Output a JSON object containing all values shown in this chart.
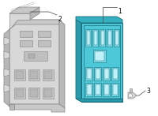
{
  "bg_color": "#ffffff",
  "part1_main_color": "#4dc8d8",
  "part1_side_color": "#2a9aaa",
  "part1_top_color": "#35b0c0",
  "part1_border": "#1a6a7a",
  "part1_slot_outer": "#7adde8",
  "part1_slot_inner": "#c0f0f8",
  "part2_front_color": "#d8d8d8",
  "part2_side_color": "#b8b8b8",
  "part2_top_color": "#c8c8c8",
  "part2_border": "#888888",
  "part3_color": "#d8d8d8",
  "part3_border": "#888888",
  "label1": "1",
  "label2": "2",
  "label3": "3",
  "label_fontsize": 5.5
}
